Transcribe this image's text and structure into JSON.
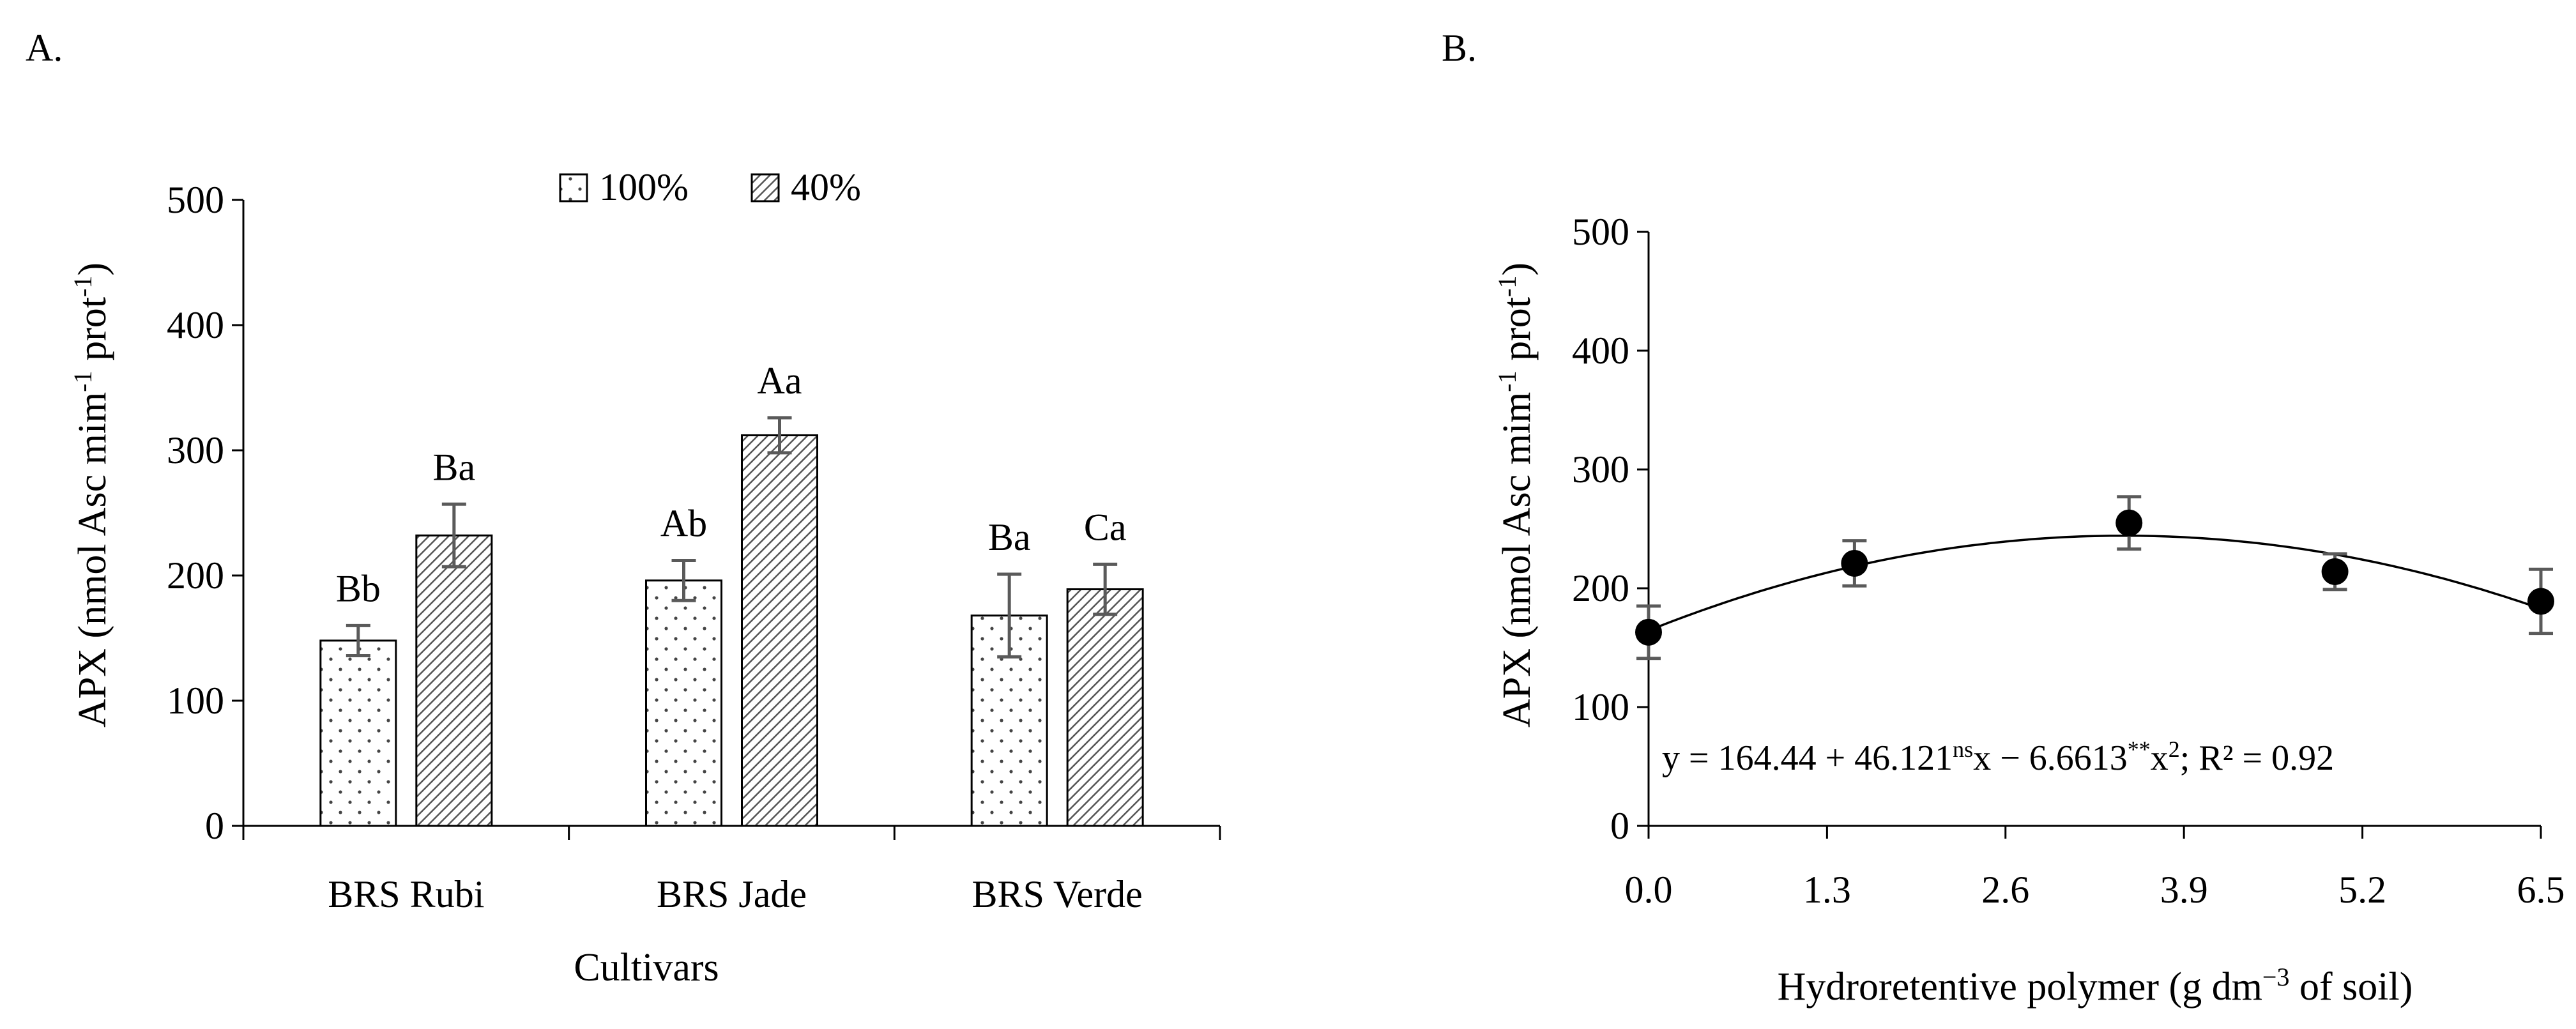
{
  "chart_data": [
    {
      "panel_label": "A.",
      "type": "bar",
      "xlabel": "Cultivars",
      "ylabel": "APX (nmol Asc mim",
      "ylabel_sup1": "-1",
      "ylabel_mid": " prot",
      "ylabel_sup2": "-1",
      "ylabel_end": ")",
      "ylim": [
        0,
        500
      ],
      "yticks": [
        0,
        100,
        200,
        300,
        400,
        500
      ],
      "categories": [
        "BRS Rubi",
        "BRS Jade",
        "BRS Verde"
      ],
      "legend_position": "top-center",
      "series": [
        {
          "name": "100%",
          "pattern": "dots",
          "values": [
            148,
            196,
            168
          ],
          "errors": [
            12,
            16,
            33
          ],
          "letters": [
            "Bb",
            "Ab",
            "Ba"
          ]
        },
        {
          "name": "40%",
          "pattern": "diagonal-hatch",
          "values": [
            232,
            312,
            189
          ],
          "errors": [
            25,
            14,
            20
          ],
          "letters": [
            "Ba",
            "Aa",
            "Ca"
          ]
        }
      ]
    },
    {
      "panel_label": "B.",
      "type": "scatter",
      "xlabel": "Hydroretentive polymer (g dm",
      "xlabel_sup": "−3",
      "xlabel_end": " of soil)",
      "ylabel": "APX (nmol Asc mim",
      "ylabel_sup1": "-1",
      "ylabel_mid": " prot",
      "ylabel_sup2": "-1",
      "ylabel_end": ")",
      "xlim": [
        0,
        6.5
      ],
      "ylim": [
        0,
        500
      ],
      "xticks": [
        "0.0",
        "1.3",
        "2.6",
        "3.9",
        "5.2",
        "6.5"
      ],
      "yticks": [
        0,
        100,
        200,
        300,
        400,
        500
      ],
      "points": [
        {
          "x": 0.0,
          "y": 163,
          "err": 22
        },
        {
          "x": 1.5,
          "y": 221,
          "err": 19
        },
        {
          "x": 3.5,
          "y": 255,
          "err": 22
        },
        {
          "x": 5.0,
          "y": 214,
          "err": 15
        },
        {
          "x": 6.5,
          "y": 189,
          "err": 27
        }
      ],
      "fit": {
        "a": 164.44,
        "b": 46.121,
        "c": -6.6613
      },
      "equation": {
        "p1": "y = 164.44 + 46.121",
        "s1": "ns",
        "p2": "x − 6.6613",
        "s2": "**",
        "p3": "x",
        "s3": "2",
        "p4": "; R² = 0.92"
      }
    }
  ],
  "colors": {
    "axis": "#000000",
    "bar_fill": "#ffffff",
    "error_bar": "#5a5a5a",
    "pattern": "#555555",
    "marker": "#000000"
  }
}
